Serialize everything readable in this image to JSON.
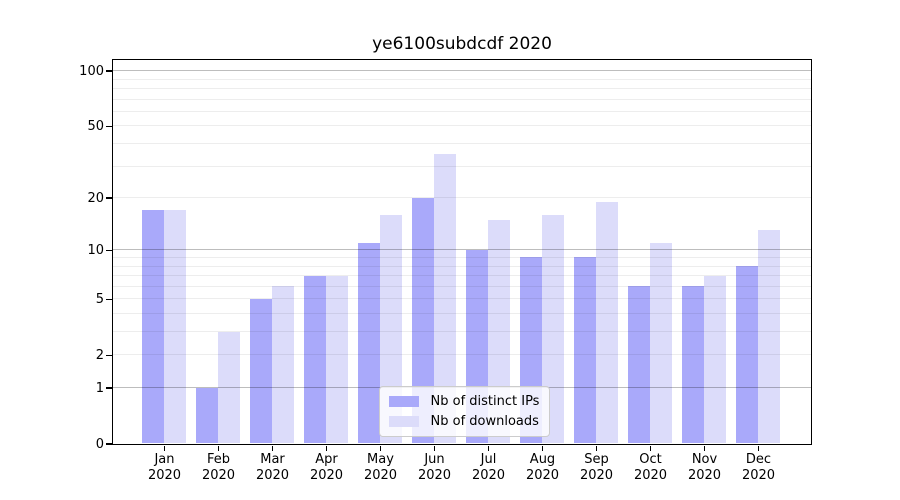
{
  "chart_data": {
    "type": "bar",
    "title": "ye6100subdcdf 2020",
    "year": "2020",
    "categories": [
      "Jan",
      "Feb",
      "Mar",
      "Apr",
      "May",
      "Jun",
      "Jul",
      "Aug",
      "Sep",
      "Oct",
      "Nov",
      "Dec"
    ],
    "series": [
      {
        "name": "Nb of distinct IPs",
        "color": "#a9a9fa",
        "values": [
          17,
          1,
          5,
          7,
          11,
          20,
          10,
          9,
          9,
          6,
          6,
          8
        ]
      },
      {
        "name": "Nb of downloads",
        "color": "#dcdcfa",
        "values": [
          17,
          3,
          6,
          7,
          16,
          35,
          15,
          16,
          19,
          11,
          7,
          13
        ]
      }
    ],
    "yscale": "log1p",
    "ylim": [
      0,
      115
    ],
    "yticks": [
      0,
      1,
      2,
      5,
      10,
      20,
      50,
      100
    ],
    "major_gridlines": [
      1,
      10,
      100
    ],
    "minor_gridlines": [
      2,
      3,
      4,
      5,
      6,
      7,
      8,
      9,
      20,
      30,
      40,
      50,
      60,
      70,
      80,
      90
    ],
    "grid": "horizontal",
    "legend_position": "lower center"
  },
  "colors": {
    "axis": "#000000",
    "grid_major": "#bdbdbd",
    "grid_minor": "#ededed",
    "background": "#ffffff"
  }
}
